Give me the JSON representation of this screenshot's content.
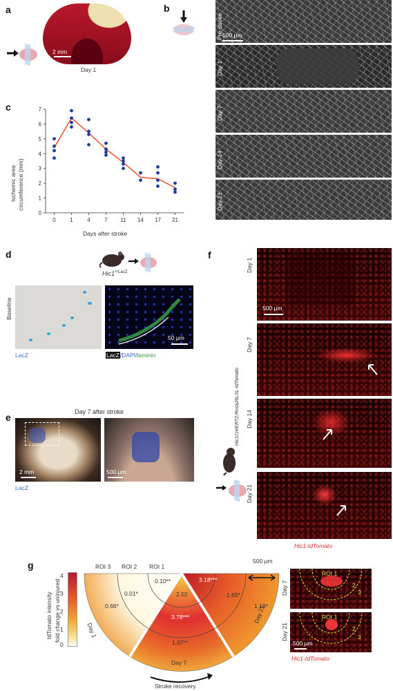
{
  "panel_labels": {
    "a": "a",
    "b": "b",
    "c": "c",
    "d": "d",
    "e": "e",
    "f": "f",
    "g": "g"
  },
  "panel_a": {
    "scale": "2 mm",
    "caption": "Day 1"
  },
  "panel_b": {
    "rows": [
      "Pre-stroke",
      "Day 1",
      "Day 7",
      "Day 14",
      "Day 21"
    ],
    "scale": "500 μm"
  },
  "panel_c": {
    "ylabel_line1": "Ischemic area",
    "ylabel_line2": "circumference (mm)",
    "xlabel": "Days after stroke"
  },
  "chart_data": {
    "type": "scatter",
    "x_ticks": [
      "0",
      "1",
      "4",
      "7",
      "11",
      "14",
      "17",
      "21"
    ],
    "y_ticks": [
      "0",
      "1",
      "2",
      "3",
      "4",
      "5",
      "6",
      "7"
    ],
    "ylim": [
      0,
      7
    ],
    "points": [
      {
        "x": "0",
        "y": [
          5.0,
          4.5,
          4.2,
          3.7
        ]
      },
      {
        "x": "1",
        "y": [
          6.9,
          6.4,
          6.1,
          5.8
        ]
      },
      {
        "x": "4",
        "y": [
          6.3,
          5.5,
          5.3,
          4.6
        ]
      },
      {
        "x": "7",
        "y": [
          4.7,
          4.3,
          4.1,
          3.9
        ]
      },
      {
        "x": "11",
        "y": [
          3.7,
          3.5,
          3.3,
          3.0
        ]
      },
      {
        "x": "14",
        "y": [
          2.7,
          2.2
        ]
      },
      {
        "x": "17",
        "y": [
          3.1,
          2.7,
          2.2,
          1.8
        ]
      },
      {
        "x": "21",
        "y": [
          2.0,
          1.6,
          1.4
        ]
      }
    ],
    "mean_line": [
      4.4,
      6.4,
      5.4,
      4.3,
      3.4,
      2.4,
      2.3,
      1.7
    ],
    "colors": {
      "points": "#1f3a9a",
      "line": "#f05a3a"
    }
  },
  "panel_d": {
    "genotype": "Hic1",
    "genotype_sup": "+/LacZ",
    "row_label": "Baseline",
    "left_caption": "LacZ",
    "right_caption_parts": [
      "LacZ",
      "/DAPI/",
      "laminin"
    ],
    "scale": "50 μm"
  },
  "panel_e": {
    "title": "Day 7 after stroke",
    "scale_left": "2 mm",
    "scale_right": "500 μm",
    "caption": "LacZ"
  },
  "panel_f": {
    "rows": [
      "Day 1",
      "Day 7",
      "Day 14",
      "Day 21"
    ],
    "genotype_vertical": "Hic1CreERT2;Rosa26LSL-tdTomato",
    "scale": "500 μm",
    "caption": "Hic1-tdTomato"
  },
  "panel_g": {
    "colorbar_title_line1": "tdTomato intensity",
    "colorbar_title_line2": "fold change vs uninjured",
    "colorbar_ticks": [
      "4",
      "3",
      "2",
      "1",
      "0"
    ],
    "roi_labels": [
      "ROI 3",
      "ROI 2",
      "ROI 1"
    ],
    "scale": "500 μm",
    "day_labels": [
      "Day 1",
      "Day 7",
      "Day 21"
    ],
    "day1_values": [
      "0.10**",
      "0.01*",
      "0.66*"
    ],
    "day7_values": [
      "2.02",
      "3.78***",
      "1.67**"
    ],
    "day21_values": [
      "3.18***",
      "1.65*",
      "1.16*"
    ],
    "recovery_label": "Stroke recovery",
    "right_rows": [
      "Day 7",
      "Day 21"
    ],
    "right_roi": "ROI 1",
    "right_roi_nums": [
      "2",
      "3"
    ],
    "right_scale": "500 μm",
    "right_caption": "Hic1-tdTomato"
  }
}
